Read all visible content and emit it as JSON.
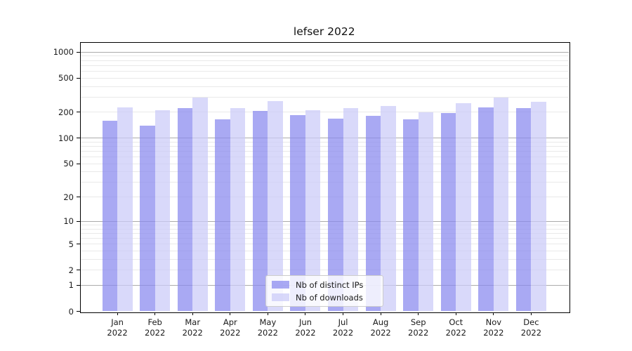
{
  "chart_data": {
    "type": "bar",
    "title": "lefser 2022",
    "categories": [
      "Jan 2022",
      "Feb 2022",
      "Mar 2022",
      "Apr 2022",
      "May 2022",
      "Jun 2022",
      "Jul 2022",
      "Aug 2022",
      "Sep 2022",
      "Oct 2022",
      "Nov 2022",
      "Dec 2022"
    ],
    "series": [
      {
        "name": "Nb of distinct IPs",
        "color": "#8888ee",
        "values": [
          160,
          140,
          222,
          165,
          207,
          184,
          168,
          181,
          167,
          195,
          227,
          222
        ]
      },
      {
        "name": "Nb of downloads",
        "color": "#cbcbf8",
        "values": [
          230,
          212,
          295,
          223,
          269,
          212,
          223,
          236,
          199,
          256,
          296,
          264
        ]
      }
    ],
    "bar_alpha": 0.72,
    "yscale": "log1p",
    "yticks": [
      0,
      1,
      2,
      5,
      10,
      20,
      50,
      100,
      200,
      500,
      1000
    ],
    "ylim": [
      0,
      1300
    ],
    "grid": true,
    "legend_position": "lower center",
    "colors": {
      "major_grid": "#ababab",
      "minor_grid": "#e9e9e9",
      "spine": "#000000",
      "legend_border": "#cccccc",
      "background": "#ffffff"
    }
  }
}
